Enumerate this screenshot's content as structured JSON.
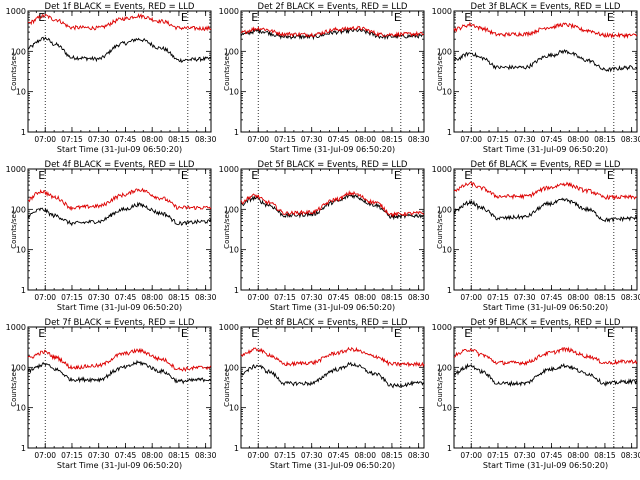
{
  "figure": {
    "xlabel_template": "Start Time (31-Jul-09 06:50:20)",
    "ylabel": "Counts/sec"
  },
  "chart_data": [
    {
      "type": "line",
      "title": "Det 1f BLACK = Events, RED = LLD",
      "xlabel": "Start Time (31-Jul-09 06:50:20)",
      "ylabel": "Counts/sec",
      "yscale": "log",
      "xlim": [
        "06:50:20",
        "08:33:00"
      ],
      "ylim": [
        1,
        1000
      ],
      "x_ticks": [
        "07:00",
        "07:15",
        "07:30",
        "07:45",
        "08:00",
        "08:15",
        "08:30"
      ],
      "y_ticks": [
        1,
        10,
        100,
        1000
      ],
      "markers": [
        {
          "time": "07:00",
          "label": "E"
        },
        {
          "time": "08:20",
          "label": "E"
        }
      ],
      "series": [
        {
          "name": "Events",
          "color": "#000000",
          "x": [
            "06:50",
            "07:00",
            "07:05",
            "07:15",
            "07:30",
            "07:45",
            "07:52",
            "08:05",
            "08:15",
            "08:30"
          ],
          "values": [
            120,
            210,
            150,
            70,
            65,
            160,
            200,
            120,
            60,
            65
          ]
        },
        {
          "name": "LLD",
          "color": "#dd0000",
          "x": [
            "06:50",
            "07:00",
            "07:05",
            "07:15",
            "07:30",
            "07:45",
            "07:52",
            "08:05",
            "08:15",
            "08:30"
          ],
          "values": [
            500,
            760,
            620,
            390,
            380,
            650,
            760,
            560,
            380,
            370
          ]
        }
      ]
    },
    {
      "type": "line",
      "title": "Det 2f BLACK = Events, RED = LLD",
      "xlabel": "Start Time (31-Jul-09 06:50:20)",
      "ylabel": "Counts/sec",
      "yscale": "log",
      "xlim": [
        "06:50:20",
        "08:33:00"
      ],
      "ylim": [
        1,
        1000
      ],
      "x_ticks": [
        "07:00",
        "07:15",
        "07:30",
        "07:45",
        "08:00",
        "08:15",
        "08:30"
      ],
      "y_ticks": [
        1,
        10,
        100,
        1000
      ],
      "markers": [
        {
          "time": "07:00",
          "label": "E"
        },
        {
          "time": "08:20",
          "label": "E"
        }
      ],
      "series": [
        {
          "name": "Events",
          "color": "#000000",
          "x": [
            "06:50",
            "07:00",
            "07:15",
            "07:30",
            "07:45",
            "07:55",
            "08:10",
            "08:30"
          ],
          "values": [
            260,
            320,
            230,
            230,
            300,
            330,
            230,
            240
          ]
        },
        {
          "name": "LLD",
          "color": "#dd0000",
          "x": [
            "06:50",
            "07:00",
            "07:15",
            "07:30",
            "07:45",
            "07:55",
            "08:10",
            "08:30"
          ],
          "values": [
            290,
            370,
            270,
            260,
            350,
            380,
            260,
            270
          ]
        }
      ]
    },
    {
      "type": "line",
      "title": "Det 3f BLACK = Events, RED = LLD",
      "xlabel": "Start Time (31-Jul-09 06:50:20)",
      "ylabel": "Counts/sec",
      "yscale": "log",
      "xlim": [
        "06:50:20",
        "08:33:00"
      ],
      "ylim": [
        1,
        1000
      ],
      "x_ticks": [
        "07:00",
        "07:15",
        "07:30",
        "07:45",
        "08:00",
        "08:15",
        "08:30"
      ],
      "y_ticks": [
        1,
        10,
        100,
        1000
      ],
      "markers": [
        {
          "time": "07:00",
          "label": "E"
        },
        {
          "time": "08:20",
          "label": "E"
        }
      ],
      "series": [
        {
          "name": "Events",
          "color": "#000000",
          "x": [
            "06:50",
            "07:00",
            "07:05",
            "07:15",
            "07:30",
            "07:45",
            "07:52",
            "08:05",
            "08:15",
            "08:30"
          ],
          "values": [
            60,
            90,
            70,
            40,
            40,
            80,
            100,
            60,
            35,
            40
          ]
        },
        {
          "name": "LLD",
          "color": "#dd0000",
          "x": [
            "06:50",
            "07:00",
            "07:05",
            "07:15",
            "07:30",
            "07:45",
            "07:52",
            "08:05",
            "08:15",
            "08:30"
          ],
          "values": [
            350,
            460,
            380,
            260,
            270,
            400,
            460,
            330,
            250,
            250
          ]
        }
      ]
    },
    {
      "type": "line",
      "title": "Det 4f BLACK = Events, RED = LLD",
      "xlabel": "Start Time (31-Jul-09 06:50:20)",
      "ylabel": "Counts/sec",
      "yscale": "log",
      "xlim": [
        "06:50:20",
        "08:33:00"
      ],
      "ylim": [
        1,
        1000
      ],
      "x_ticks": [
        "07:00",
        "07:15",
        "07:30",
        "07:45",
        "08:00",
        "08:15",
        "08:30"
      ],
      "y_ticks": [
        1,
        10,
        100,
        1000
      ],
      "markers": [
        {
          "time": "07:00",
          "label": "E"
        },
        {
          "time": "08:20",
          "label": "E"
        }
      ],
      "series": [
        {
          "name": "Events",
          "color": "#000000",
          "x": [
            "06:50",
            "06:58",
            "07:05",
            "07:15",
            "07:30",
            "07:45",
            "07:52",
            "08:05",
            "08:15",
            "08:30"
          ],
          "values": [
            70,
            100,
            70,
            45,
            50,
            100,
            130,
            80,
            45,
            50
          ]
        },
        {
          "name": "LLD",
          "color": "#dd0000",
          "x": [
            "06:50",
            "06:58",
            "07:05",
            "07:15",
            "07:30",
            "07:45",
            "07:52",
            "08:05",
            "08:15",
            "08:30"
          ],
          "values": [
            170,
            280,
            200,
            110,
            120,
            230,
            310,
            190,
            110,
            110
          ]
        }
      ]
    },
    {
      "type": "line",
      "title": "Det 5f BLACK = Events, RED = LLD",
      "xlabel": "Start Time (31-Jul-09 06:50:20)",
      "ylabel": "Counts/sec",
      "yscale": "log",
      "xlim": [
        "06:50:20",
        "08:33:00"
      ],
      "ylim": [
        1,
        1000
      ],
      "x_ticks": [
        "07:00",
        "07:15",
        "07:30",
        "07:45",
        "08:00",
        "08:15",
        "08:30"
      ],
      "y_ticks": [
        1,
        10,
        100,
        1000
      ],
      "markers": [
        {
          "time": "07:00",
          "label": "E"
        },
        {
          "time": "08:20",
          "label": "E"
        }
      ],
      "series": [
        {
          "name": "Events",
          "color": "#000000",
          "x": [
            "06:50",
            "06:58",
            "07:05",
            "07:15",
            "07:30",
            "07:45",
            "07:52",
            "08:05",
            "08:15",
            "08:30"
          ],
          "values": [
            130,
            190,
            130,
            70,
            75,
            160,
            220,
            130,
            65,
            70
          ]
        },
        {
          "name": "LLD",
          "color": "#dd0000",
          "x": [
            "06:50",
            "06:58",
            "07:05",
            "07:15",
            "07:30",
            "07:45",
            "07:52",
            "08:05",
            "08:15",
            "08:30"
          ],
          "values": [
            150,
            220,
            150,
            80,
            85,
            180,
            250,
            150,
            75,
            80
          ]
        }
      ]
    },
    {
      "type": "line",
      "title": "Det 6f BLACK = Events, RED = LLD",
      "xlabel": "Start Time (31-Jul-09 06:50:20)",
      "ylabel": "Counts/sec",
      "yscale": "log",
      "xlim": [
        "06:50:20",
        "08:33:00"
      ],
      "ylim": [
        1,
        1000
      ],
      "x_ticks": [
        "07:00",
        "07:15",
        "07:30",
        "07:45",
        "08:00",
        "08:15",
        "08:30"
      ],
      "y_ticks": [
        1,
        10,
        100,
        1000
      ],
      "markers": [
        {
          "time": "07:00",
          "label": "E"
        },
        {
          "time": "08:20",
          "label": "E"
        }
      ],
      "series": [
        {
          "name": "Events",
          "color": "#000000",
          "x": [
            "06:50",
            "07:00",
            "07:05",
            "07:15",
            "07:30",
            "07:45",
            "07:52",
            "08:05",
            "08:15",
            "08:30"
          ],
          "values": [
            90,
            150,
            110,
            60,
            65,
            140,
            170,
            100,
            55,
            60
          ]
        },
        {
          "name": "LLD",
          "color": "#dd0000",
          "x": [
            "06:50",
            "07:00",
            "07:05",
            "07:15",
            "07:30",
            "07:45",
            "07:52",
            "08:05",
            "08:15",
            "08:30"
          ],
          "values": [
            300,
            430,
            340,
            210,
            210,
            350,
            430,
            290,
            200,
            200
          ]
        }
      ]
    },
    {
      "type": "line",
      "title": "Det 7f BLACK = Events, RED = LLD",
      "xlabel": "Start Time (31-Jul-09 06:50:20)",
      "ylabel": "Counts/sec",
      "yscale": "log",
      "xlim": [
        "06:50:20",
        "08:33:00"
      ],
      "ylim": [
        1,
        1000
      ],
      "x_ticks": [
        "07:00",
        "07:15",
        "07:30",
        "07:45",
        "08:00",
        "08:15",
        "08:30"
      ],
      "y_ticks": [
        1,
        10,
        100,
        1000
      ],
      "markers": [
        {
          "time": "07:00",
          "label": "E"
        },
        {
          "time": "08:20",
          "label": "E"
        }
      ],
      "series": [
        {
          "name": "Events",
          "color": "#000000",
          "x": [
            "06:50",
            "07:00",
            "07:05",
            "07:15",
            "07:30",
            "07:45",
            "07:52",
            "08:05",
            "08:15",
            "08:30"
          ],
          "values": [
            80,
            120,
            90,
            50,
            50,
            100,
            130,
            80,
            45,
            50
          ]
        },
        {
          "name": "LLD",
          "color": "#dd0000",
          "x": [
            "06:50",
            "07:00",
            "07:05",
            "07:15",
            "07:30",
            "07:45",
            "07:52",
            "08:05",
            "08:15",
            "08:30"
          ],
          "values": [
            170,
            240,
            180,
            100,
            110,
            220,
            260,
            160,
            90,
            100
          ]
        }
      ]
    },
    {
      "type": "line",
      "title": "Det 8f BLACK = Events, RED = LLD",
      "xlabel": "Start Time (31-Jul-09 06:50:20)",
      "ylabel": "Counts/sec",
      "yscale": "log",
      "xlim": [
        "06:50:20",
        "08:33:00"
      ],
      "ylim": [
        1,
        1000
      ],
      "x_ticks": [
        "07:00",
        "07:15",
        "07:30",
        "07:45",
        "08:00",
        "08:15",
        "08:30"
      ],
      "y_ticks": [
        1,
        10,
        100,
        1000
      ],
      "markers": [
        {
          "time": "07:00",
          "label": "E"
        },
        {
          "time": "08:20",
          "label": "E"
        }
      ],
      "series": [
        {
          "name": "Events",
          "color": "#000000",
          "x": [
            "06:50",
            "07:00",
            "07:05",
            "07:15",
            "07:30",
            "07:45",
            "07:52",
            "08:05",
            "08:15",
            "08:30"
          ],
          "values": [
            70,
            110,
            80,
            40,
            40,
            90,
            120,
            70,
            35,
            40
          ]
        },
        {
          "name": "LLD",
          "color": "#dd0000",
          "x": [
            "06:50",
            "07:00",
            "07:05",
            "07:15",
            "07:30",
            "07:45",
            "07:52",
            "08:05",
            "08:15",
            "08:30"
          ],
          "values": [
            210,
            280,
            210,
            120,
            130,
            230,
            280,
            190,
            120,
            120
          ]
        }
      ]
    },
    {
      "type": "line",
      "title": "Det 9f BLACK = Events, RED = LLD",
      "xlabel": "Start Time (31-Jul-09 06:50:20)",
      "ylabel": "Counts/sec",
      "yscale": "log",
      "xlim": [
        "06:50:20",
        "08:33:00"
      ],
      "ylim": [
        1,
        1000
      ],
      "x_ticks": [
        "07:00",
        "07:15",
        "07:30",
        "07:45",
        "08:00",
        "08:15",
        "08:30"
      ],
      "y_ticks": [
        1,
        10,
        100,
        1000
      ],
      "markers": [
        {
          "time": "07:00",
          "label": "E"
        },
        {
          "time": "08:20",
          "label": "E"
        }
      ],
      "series": [
        {
          "name": "Events",
          "color": "#000000",
          "x": [
            "06:50",
            "07:00",
            "07:05",
            "07:15",
            "07:30",
            "07:45",
            "07:52",
            "08:05",
            "08:15",
            "08:30"
          ],
          "values": [
            70,
            110,
            80,
            40,
            40,
            90,
            110,
            70,
            40,
            45
          ]
        },
        {
          "name": "LLD",
          "color": "#dd0000",
          "x": [
            "06:50",
            "07:00",
            "07:05",
            "07:15",
            "07:30",
            "07:45",
            "07:52",
            "08:05",
            "08:15",
            "08:30"
          ],
          "values": [
            200,
            280,
            210,
            130,
            130,
            230,
            280,
            190,
            130,
            140
          ]
        }
      ]
    }
  ]
}
